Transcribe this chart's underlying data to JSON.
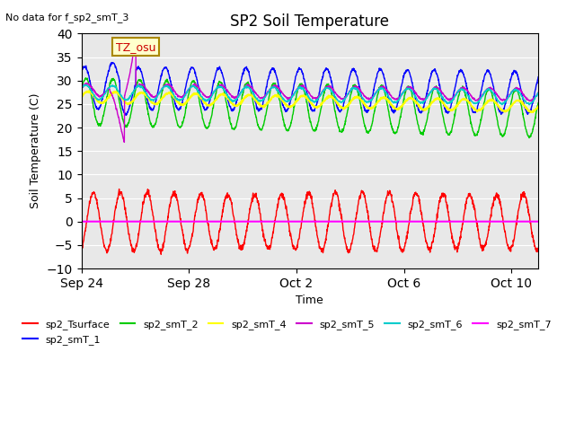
{
  "title": "SP2 Soil Temperature",
  "subtitle": "No data for f_sp2_smT_3",
  "xlabel": "Time",
  "ylabel": "Soil Temperature (C)",
  "tz_label": "TZ_osu",
  "ylim": [
    -10,
    40
  ],
  "yticks": [
    -10,
    -5,
    0,
    5,
    10,
    15,
    20,
    25,
    30,
    35,
    40
  ],
  "n_points": 1680,
  "period_days": 17,
  "series": {
    "sp2_Tsurface": {
      "color": "#ff0000",
      "lw": 1.0
    },
    "sp2_smT_1": {
      "color": "#0000ff",
      "lw": 1.0
    },
    "sp2_smT_2": {
      "color": "#00cc00",
      "lw": 1.0
    },
    "sp2_smT_4": {
      "color": "#ffff00",
      "lw": 1.5
    },
    "sp2_smT_5": {
      "color": "#cc00cc",
      "lw": 1.0
    },
    "sp2_smT_6": {
      "color": "#00cccc",
      "lw": 1.0
    },
    "sp2_smT_7": {
      "color": "#ff00ff",
      "lw": 1.5
    }
  },
  "bg_color": "#e8e8e8",
  "xtick_labels": [
    "Sep 24",
    "Sep 28",
    "Oct 2",
    "Oct 6",
    "Oct 10"
  ],
  "xtick_days": [
    0,
    4,
    8,
    12,
    16
  ]
}
